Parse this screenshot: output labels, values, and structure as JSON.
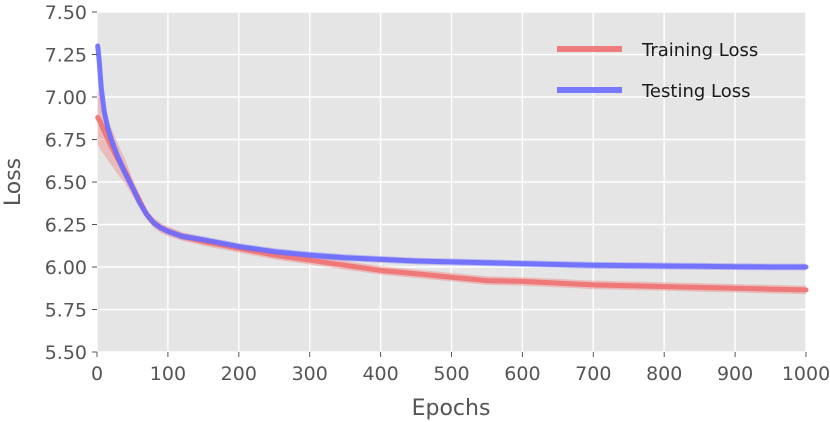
{
  "chart_data": {
    "type": "line",
    "title": "",
    "xlabel": "Epochs",
    "ylabel": "Loss",
    "xlim": [
      0,
      1000
    ],
    "ylim": [
      5.5,
      7.5
    ],
    "xticks": [
      0,
      100,
      200,
      300,
      400,
      500,
      600,
      700,
      800,
      900,
      1000
    ],
    "yticks": [
      5.5,
      5.75,
      6.0,
      6.25,
      6.5,
      6.75,
      7.0,
      7.25,
      7.5
    ],
    "grid": true,
    "legend_position": "top-right",
    "series": [
      {
        "name": "Training Loss",
        "color": "#f07070",
        "band_color": "#f07070",
        "x": [
          1,
          5,
          10,
          20,
          30,
          40,
          50,
          60,
          70,
          80,
          90,
          100,
          120,
          150,
          200,
          250,
          300,
          350,
          400,
          450,
          500,
          550,
          600,
          650,
          700,
          750,
          800,
          850,
          900,
          950,
          1000
        ],
        "y": [
          6.88,
          6.85,
          6.8,
          6.71,
          6.63,
          6.56,
          6.47,
          6.39,
          6.31,
          6.26,
          6.23,
          6.21,
          6.18,
          6.15,
          6.11,
          6.07,
          6.04,
          6.01,
          5.98,
          5.96,
          5.94,
          5.92,
          5.915,
          5.905,
          5.895,
          5.89,
          5.885,
          5.88,
          5.875,
          5.87,
          5.865
        ],
        "band": [
          0.16,
          0.16,
          0.14,
          0.11,
          0.09,
          0.07,
          0.05,
          0.04,
          0.03,
          0.03,
          0.03,
          0.03,
          0.025,
          0.025,
          0.025,
          0.025,
          0.025,
          0.025,
          0.025,
          0.025,
          0.025,
          0.025,
          0.025,
          0.025,
          0.025,
          0.025,
          0.025,
          0.025,
          0.025,
          0.025,
          0.025
        ]
      },
      {
        "name": "Testing Loss",
        "color": "#6b6bff",
        "band_color": "#6b6bff",
        "x": [
          1,
          3,
          6,
          10,
          15,
          20,
          30,
          40,
          50,
          60,
          70,
          80,
          90,
          100,
          120,
          150,
          200,
          250,
          300,
          350,
          400,
          450,
          500,
          550,
          600,
          650,
          700,
          750,
          800,
          850,
          900,
          950,
          1000
        ],
        "y": [
          7.3,
          7.22,
          7.05,
          6.92,
          6.82,
          6.75,
          6.64,
          6.55,
          6.47,
          6.38,
          6.31,
          6.26,
          6.23,
          6.21,
          6.18,
          6.16,
          6.12,
          6.09,
          6.07,
          6.055,
          6.045,
          6.035,
          6.03,
          6.025,
          6.02,
          6.015,
          6.01,
          6.008,
          6.006,
          6.004,
          6.002,
          6.0,
          6.0
        ],
        "band": [
          0.05,
          0.05,
          0.06,
          0.05,
          0.05,
          0.05,
          0.045,
          0.04,
          0.035,
          0.03,
          0.025,
          0.02,
          0.02,
          0.02,
          0.02,
          0.02,
          0.02,
          0.02,
          0.02,
          0.02,
          0.02,
          0.02,
          0.02,
          0.02,
          0.02,
          0.02,
          0.02,
          0.02,
          0.02,
          0.02,
          0.02,
          0.02,
          0.02
        ]
      }
    ]
  },
  "style": {
    "plot_background": "#e5e5e5",
    "grid_color": "#ffffff",
    "text_color": "#555555"
  }
}
